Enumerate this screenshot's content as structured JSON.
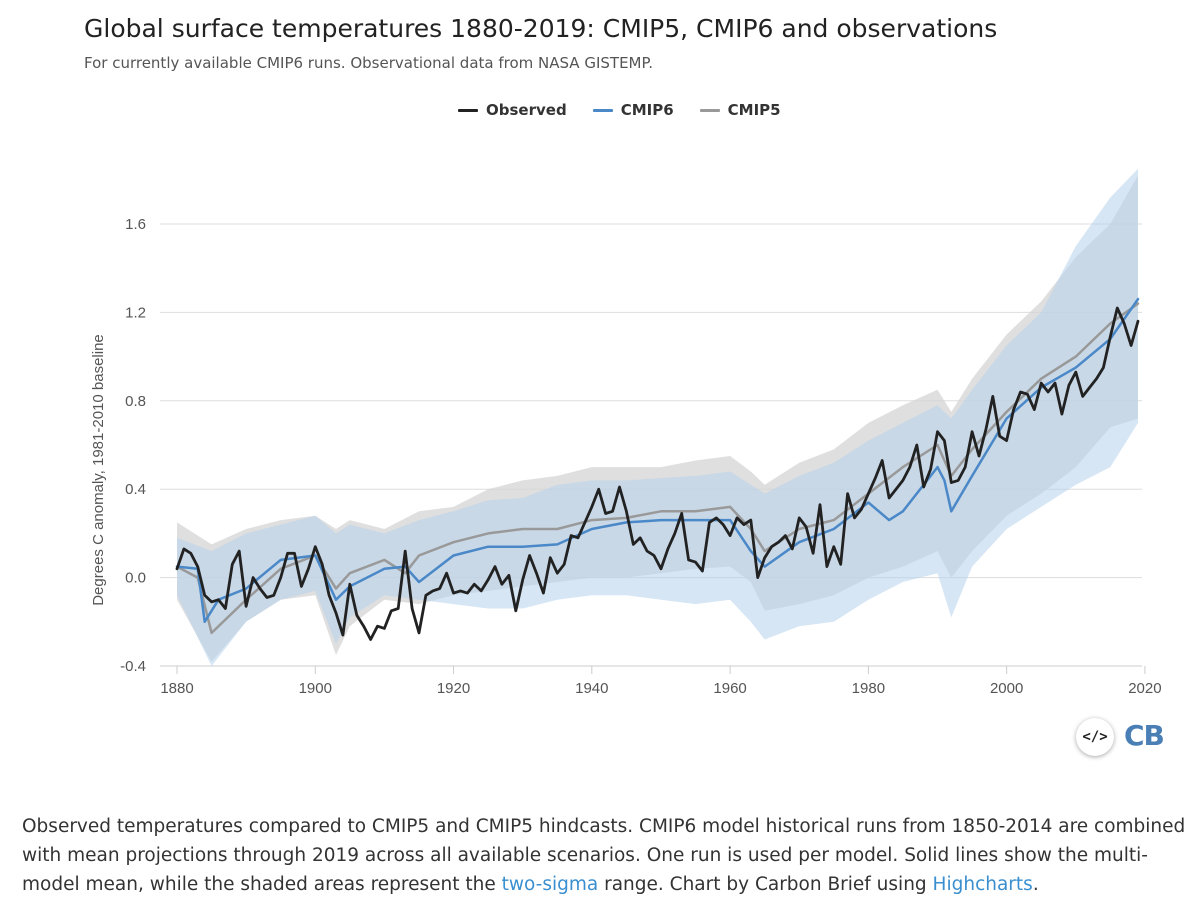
{
  "header": {
    "title": "Global surface temperatures 1880-2019: CMIP5, CMIP6 and observations",
    "subtitle": "For currently available CMIP6 runs. Observational data from NASA GISTEMP."
  },
  "legend": [
    {
      "label": "Observed",
      "color": "#222222"
    },
    {
      "label": "CMIP6",
      "color": "#4a88c8"
    },
    {
      "label": "CMIP5",
      "color": "#999999"
    }
  ],
  "embed_button": {
    "label": "</>",
    "icon": "code-embed-icon"
  },
  "logo": {
    "text": "CB"
  },
  "caption": {
    "text1": "Observed temperatures compared to CMIP5 and CMIP5 hindcasts. CMIP6 model historical runs from 1850-2014 are combined with mean projections through 2019 across all available scenarios. One run is used per model. Solid lines show the multi-model mean, while the shaded areas represent the ",
    "link1": "two-sigma",
    "text2": " range. Chart by Carbon Brief using ",
    "link2": "Highcharts",
    "text3": "."
  },
  "chart_data": {
    "type": "line",
    "title": "Global surface temperatures 1880-2019: CMIP5, CMIP6 and observations",
    "xlabel": "",
    "ylabel": "Degrees C anomaly, 1981-2010 baseline",
    "xlim": [
      1880,
      2019
    ],
    "ylim": [
      -0.4,
      1.8
    ],
    "xticks": [
      1880,
      1900,
      1920,
      1940,
      1960,
      1980,
      2000,
      2020
    ],
    "yticks": [
      "-0.4",
      "0.0",
      "0.4",
      "0.8",
      "1.2",
      "1.6"
    ],
    "grid": true,
    "legend_position": "top-center",
    "bands": [
      {
        "name": "CMIP5 two-sigma range",
        "color": "#d4d4d4",
        "x": [
          1880,
          1885,
          1890,
          1895,
          1900,
          1903,
          1905,
          1910,
          1915,
          1920,
          1925,
          1930,
          1935,
          1940,
          1945,
          1950,
          1955,
          1960,
          1963,
          1965,
          1970,
          1975,
          1980,
          1985,
          1990,
          1992,
          1995,
          2000,
          2005,
          2010,
          2015,
          2019
        ],
        "lower": [
          -0.1,
          -0.38,
          -0.2,
          -0.1,
          -0.08,
          -0.35,
          -0.22,
          -0.1,
          -0.12,
          -0.08,
          -0.06,
          -0.04,
          -0.02,
          0.0,
          0.0,
          0.02,
          0.04,
          0.05,
          -0.02,
          -0.15,
          -0.12,
          -0.08,
          0.0,
          0.05,
          0.12,
          0.0,
          0.12,
          0.28,
          0.38,
          0.5,
          0.68,
          0.72
        ],
        "upper": [
          0.25,
          0.15,
          0.22,
          0.26,
          0.28,
          0.22,
          0.26,
          0.22,
          0.3,
          0.32,
          0.4,
          0.44,
          0.46,
          0.5,
          0.5,
          0.5,
          0.53,
          0.55,
          0.48,
          0.42,
          0.52,
          0.58,
          0.7,
          0.78,
          0.85,
          0.75,
          0.9,
          1.1,
          1.25,
          1.45,
          1.6,
          1.82
        ]
      },
      {
        "name": "CMIP6 two-sigma range",
        "color": "#b4d2ec",
        "x": [
          1880,
          1885,
          1890,
          1895,
          1900,
          1903,
          1905,
          1910,
          1915,
          1920,
          1925,
          1930,
          1935,
          1940,
          1945,
          1950,
          1955,
          1960,
          1963,
          1965,
          1970,
          1975,
          1980,
          1985,
          1990,
          1992,
          1995,
          2000,
          2005,
          2010,
          2015,
          2019
        ],
        "lower": [
          -0.08,
          -0.4,
          -0.2,
          -0.1,
          -0.06,
          -0.3,
          -0.18,
          -0.08,
          -0.1,
          -0.12,
          -0.14,
          -0.14,
          -0.1,
          -0.08,
          -0.08,
          -0.1,
          -0.12,
          -0.1,
          -0.2,
          -0.28,
          -0.22,
          -0.2,
          -0.1,
          -0.02,
          0.02,
          -0.18,
          0.05,
          0.22,
          0.32,
          0.42,
          0.5,
          0.7
        ],
        "upper": [
          0.18,
          0.12,
          0.2,
          0.24,
          0.28,
          0.2,
          0.24,
          0.2,
          0.26,
          0.3,
          0.35,
          0.36,
          0.42,
          0.44,
          0.44,
          0.45,
          0.46,
          0.48,
          0.42,
          0.38,
          0.46,
          0.52,
          0.62,
          0.7,
          0.78,
          0.72,
          0.85,
          1.05,
          1.2,
          1.5,
          1.72,
          1.85
        ]
      }
    ],
    "series": [
      {
        "name": "CMIP5",
        "color": "#999999",
        "x": [
          1880,
          1883,
          1885,
          1890,
          1895,
          1900,
          1903,
          1905,
          1910,
          1913,
          1915,
          1920,
          1925,
          1930,
          1935,
          1940,
          1945,
          1950,
          1955,
          1960,
          1963,
          1965,
          1970,
          1975,
          1980,
          1985,
          1990,
          1992,
          1995,
          2000,
          2005,
          2010,
          2015,
          2019
        ],
        "values": [
          0.05,
          0.0,
          -0.25,
          -0.1,
          0.04,
          0.1,
          -0.05,
          0.02,
          0.08,
          0.02,
          0.1,
          0.16,
          0.2,
          0.22,
          0.22,
          0.26,
          0.27,
          0.3,
          0.3,
          0.32,
          0.22,
          0.12,
          0.22,
          0.26,
          0.38,
          0.5,
          0.6,
          0.46,
          0.58,
          0.75,
          0.9,
          1.0,
          1.15,
          1.24
        ]
      },
      {
        "name": "CMIP6",
        "color": "#4a88c8",
        "x": [
          1880,
          1883,
          1884,
          1886,
          1890,
          1895,
          1900,
          1903,
          1905,
          1910,
          1913,
          1915,
          1920,
          1925,
          1930,
          1935,
          1940,
          1945,
          1950,
          1955,
          1960,
          1963,
          1965,
          1970,
          1975,
          1980,
          1983,
          1985,
          1990,
          1991,
          1992,
          1995,
          2000,
          2005,
          2010,
          2015,
          2019
        ],
        "values": [
          0.05,
          0.04,
          -0.2,
          -0.1,
          -0.05,
          0.08,
          0.1,
          -0.1,
          -0.04,
          0.04,
          0.05,
          -0.02,
          0.1,
          0.14,
          0.14,
          0.15,
          0.22,
          0.25,
          0.26,
          0.26,
          0.26,
          0.12,
          0.05,
          0.16,
          0.22,
          0.34,
          0.26,
          0.3,
          0.5,
          0.44,
          0.3,
          0.46,
          0.72,
          0.86,
          0.95,
          1.08,
          1.26
        ]
      },
      {
        "name": "Observed",
        "color": "#222222",
        "x": [
          1880,
          1881,
          1882,
          1883,
          1884,
          1885,
          1886,
          1887,
          1888,
          1889,
          1890,
          1891,
          1892,
          1893,
          1894,
          1895,
          1896,
          1897,
          1898,
          1899,
          1900,
          1901,
          1902,
          1903,
          1904,
          1905,
          1906,
          1907,
          1908,
          1909,
          1910,
          1911,
          1912,
          1913,
          1914,
          1915,
          1916,
          1917,
          1918,
          1919,
          1920,
          1921,
          1922,
          1923,
          1924,
          1925,
          1926,
          1927,
          1928,
          1929,
          1930,
          1931,
          1932,
          1933,
          1934,
          1935,
          1936,
          1937,
          1938,
          1939,
          1940,
          1941,
          1942,
          1943,
          1944,
          1945,
          1946,
          1947,
          1948,
          1949,
          1950,
          1951,
          1952,
          1953,
          1954,
          1955,
          1956,
          1957,
          1958,
          1959,
          1960,
          1961,
          1962,
          1963,
          1964,
          1965,
          1966,
          1967,
          1968,
          1969,
          1970,
          1971,
          1972,
          1973,
          1974,
          1975,
          1976,
          1977,
          1978,
          1979,
          1980,
          1981,
          1982,
          1983,
          1984,
          1985,
          1986,
          1987,
          1988,
          1989,
          1990,
          1991,
          1992,
          1993,
          1994,
          1995,
          1996,
          1997,
          1998,
          1999,
          2000,
          2001,
          2002,
          2003,
          2004,
          2005,
          2006,
          2007,
          2008,
          2009,
          2010,
          2011,
          2012,
          2013,
          2014,
          2015,
          2016,
          2017,
          2018,
          2019
        ],
        "values": [
          0.04,
          0.13,
          0.11,
          0.05,
          -0.08,
          -0.11,
          -0.1,
          -0.14,
          0.06,
          0.12,
          -0.13,
          0.0,
          -0.05,
          -0.09,
          -0.08,
          0.0,
          0.11,
          0.11,
          -0.04,
          0.04,
          0.14,
          0.06,
          -0.08,
          -0.16,
          -0.26,
          -0.03,
          -0.17,
          -0.22,
          -0.28,
          -0.22,
          -0.23,
          -0.15,
          -0.14,
          0.12,
          -0.14,
          -0.25,
          -0.08,
          -0.06,
          -0.05,
          0.02,
          -0.07,
          -0.06,
          -0.07,
          -0.03,
          -0.06,
          -0.01,
          0.05,
          -0.03,
          0.01,
          -0.15,
          -0.01,
          0.1,
          0.02,
          -0.07,
          0.09,
          0.02,
          0.06,
          0.19,
          0.18,
          0.25,
          0.32,
          0.4,
          0.29,
          0.3,
          0.41,
          0.3,
          0.15,
          0.18,
          0.12,
          0.1,
          0.04,
          0.13,
          0.2,
          0.29,
          0.08,
          0.07,
          0.03,
          0.25,
          0.27,
          0.24,
          0.19,
          0.27,
          0.24,
          0.26,
          0.0,
          0.09,
          0.14,
          0.16,
          0.19,
          0.13,
          0.27,
          0.23,
          0.11,
          0.33,
          0.05,
          0.14,
          0.06,
          0.38,
          0.27,
          0.31,
          0.38,
          0.45,
          0.53,
          0.36,
          0.4,
          0.44,
          0.5,
          0.6,
          0.41,
          0.49,
          0.66,
          0.62,
          0.43,
          0.44,
          0.5,
          0.66,
          0.55,
          0.67,
          0.82,
          0.64,
          0.62,
          0.76,
          0.84,
          0.83,
          0.76,
          0.88,
          0.84,
          0.88,
          0.74,
          0.87,
          0.93,
          0.82,
          0.86,
          0.9,
          0.95,
          1.09,
          1.22,
          1.15,
          1.05,
          1.16
        ]
      }
    ]
  }
}
